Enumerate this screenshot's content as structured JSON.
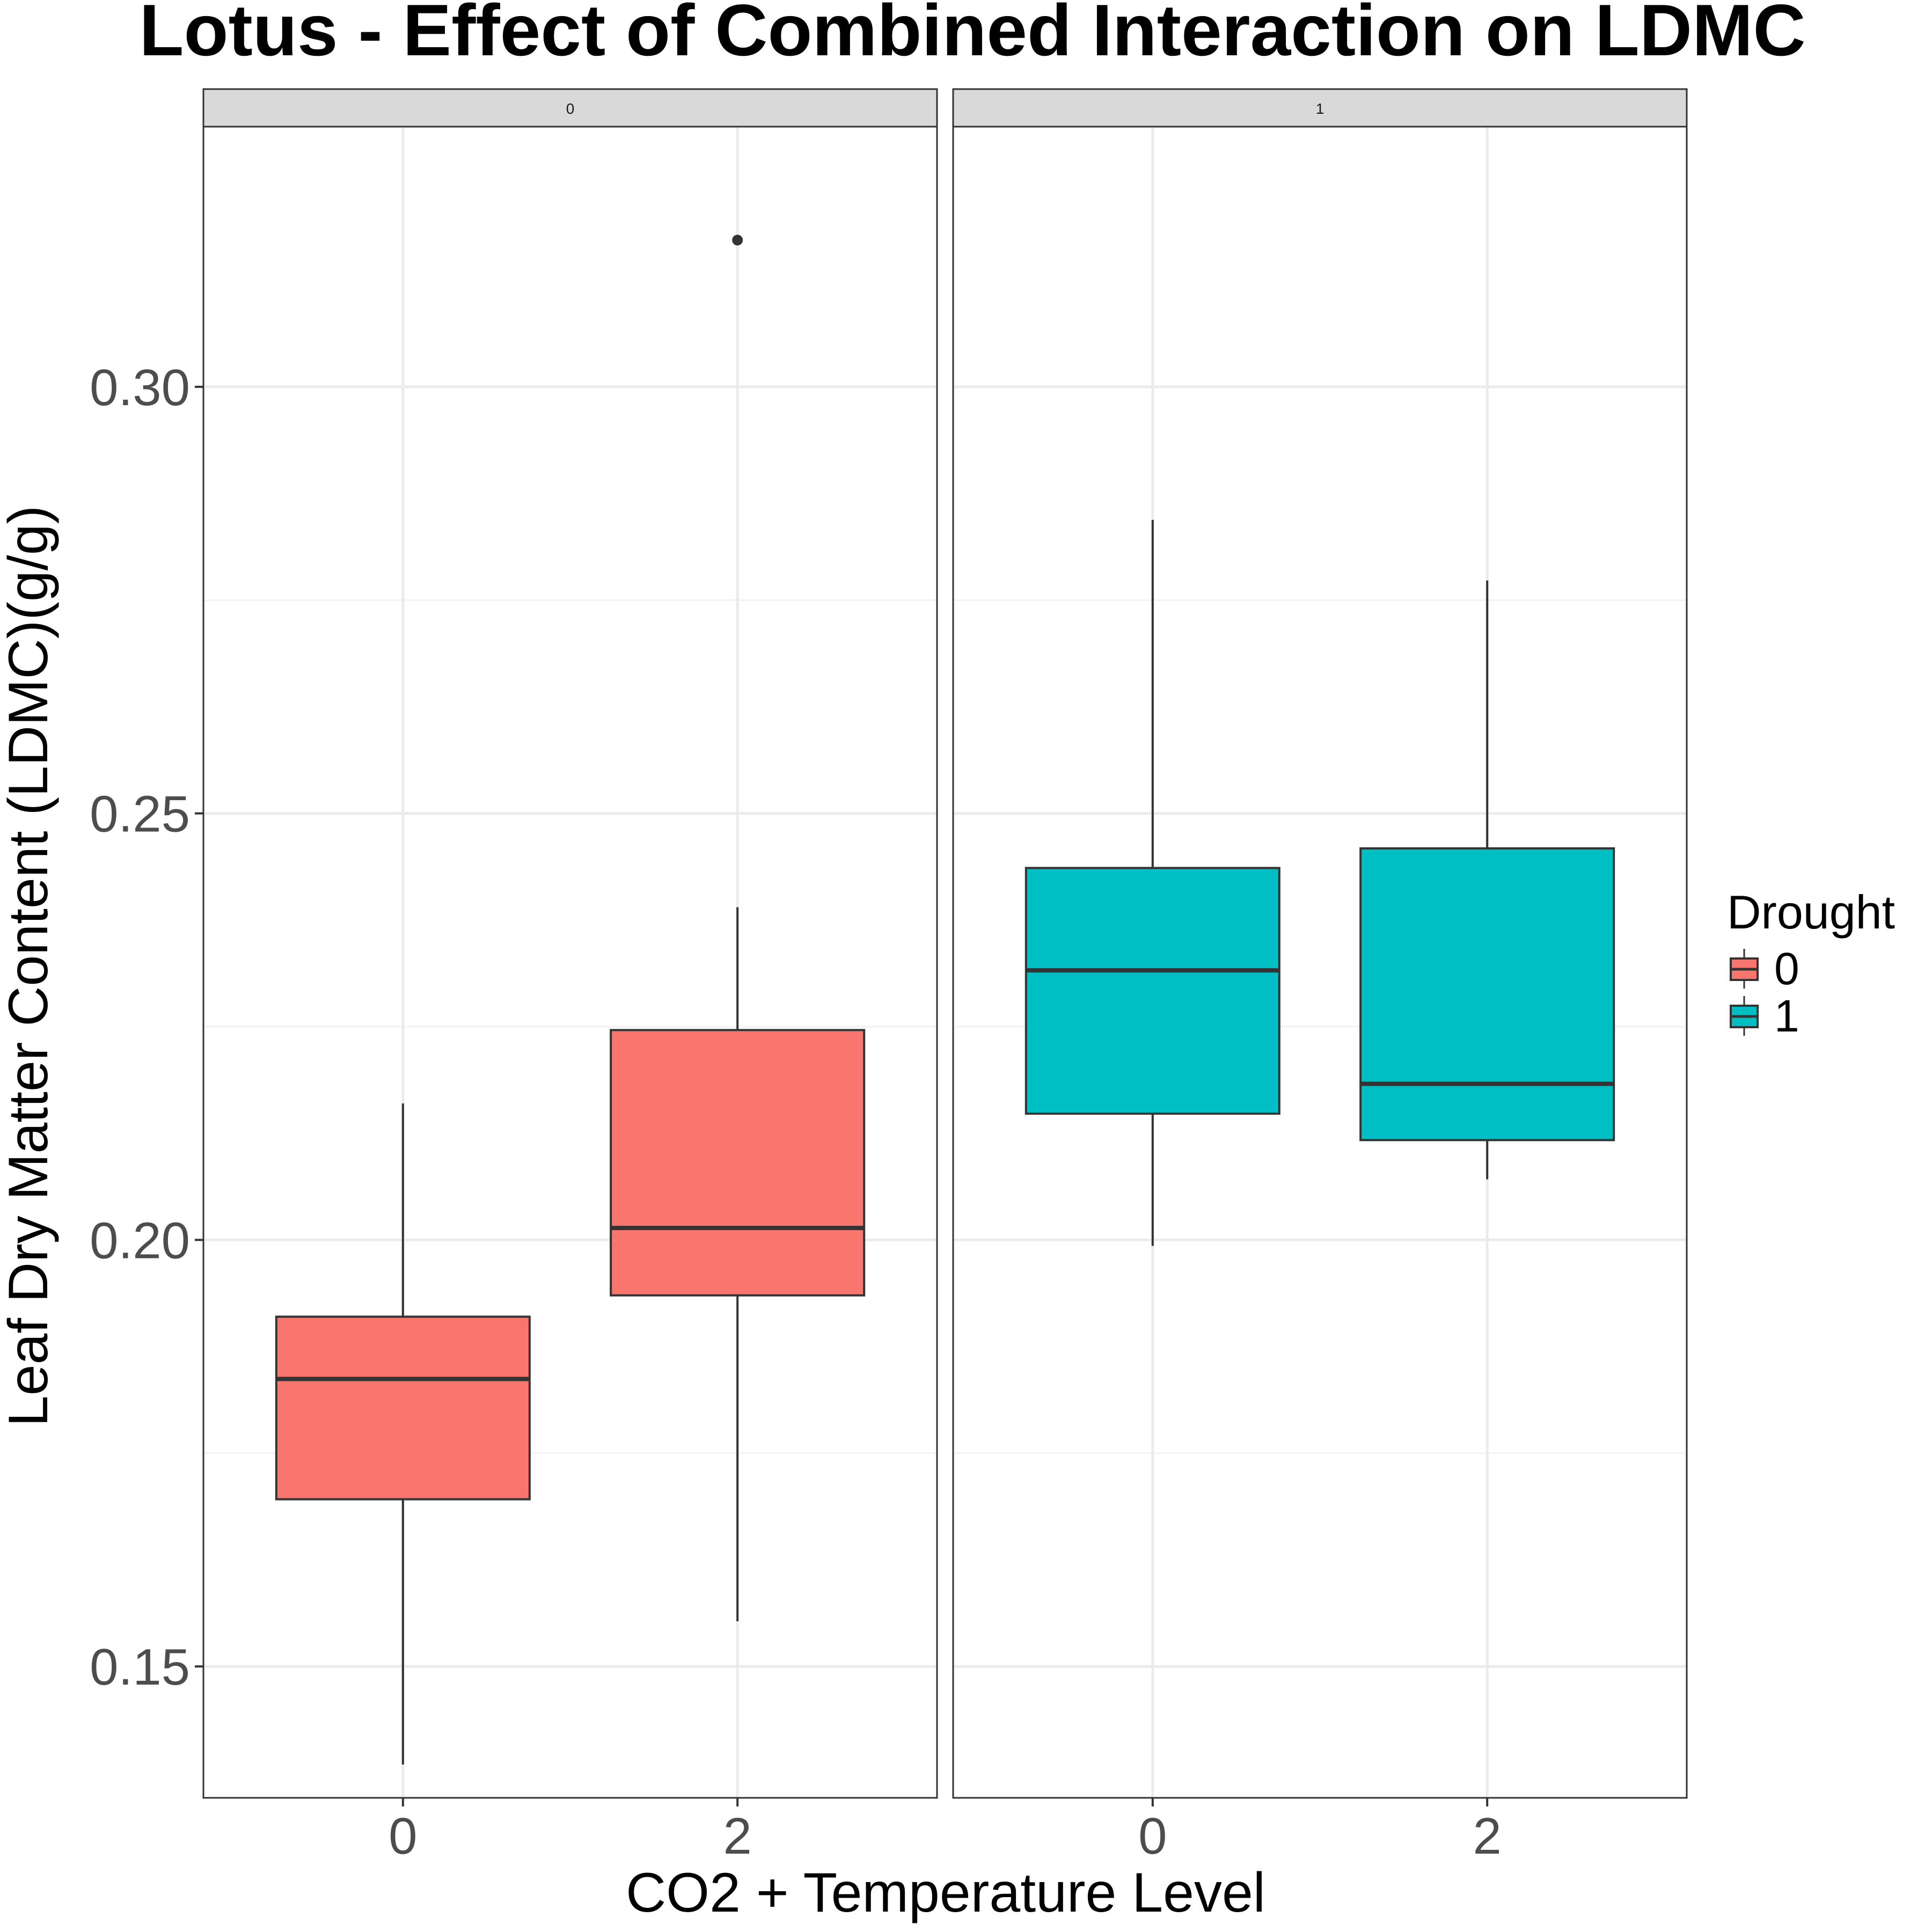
{
  "chart_data": {
    "type": "boxplot",
    "title": "Lotus - Effect of Combined Interaction on LDMC",
    "xlabel": "CO2 + Temperature Level",
    "ylabel": "Leaf Dry Matter Content (LDMC)(g/g)",
    "ylim": [
      0.1346,
      0.3305
    ],
    "y_ticks": [
      "0.15",
      "0.20",
      "0.25",
      "0.30"
    ],
    "y_tick_values": [
      0.15,
      0.2,
      0.25,
      0.3
    ],
    "y_minor_values": [
      0.175,
      0.225,
      0.275
    ],
    "x_categories": [
      "0",
      "2"
    ],
    "grid": true,
    "facet_by": "Drought",
    "legend": {
      "title": "Drought",
      "position": "right",
      "entries": [
        {
          "label": "0",
          "color": "#F8766D"
        },
        {
          "label": "1",
          "color": "#00BFC4"
        }
      ]
    },
    "panels": [
      {
        "strip_label": "0",
        "fill": "#F8766D",
        "boxes": [
          {
            "x": "0",
            "whisker_low": 0.1385,
            "q1": 0.1696,
            "median": 0.1837,
            "q3": 0.191,
            "whisker_high": 0.216,
            "outliers": []
          },
          {
            "x": "2",
            "whisker_low": 0.1553,
            "q1": 0.1935,
            "median": 0.2014,
            "q3": 0.2246,
            "whisker_high": 0.239,
            "outliers": [
              0.3172
            ]
          }
        ]
      },
      {
        "strip_label": "1",
        "fill": "#00BFC4",
        "boxes": [
          {
            "x": "0",
            "whisker_low": 0.1993,
            "q1": 0.2148,
            "median": 0.2316,
            "q3": 0.2436,
            "whisker_high": 0.2844,
            "outliers": []
          },
          {
            "x": "2",
            "whisker_low": 0.2071,
            "q1": 0.2117,
            "median": 0.2183,
            "q3": 0.2459,
            "whisker_high": 0.2773,
            "outliers": []
          }
        ]
      }
    ]
  }
}
